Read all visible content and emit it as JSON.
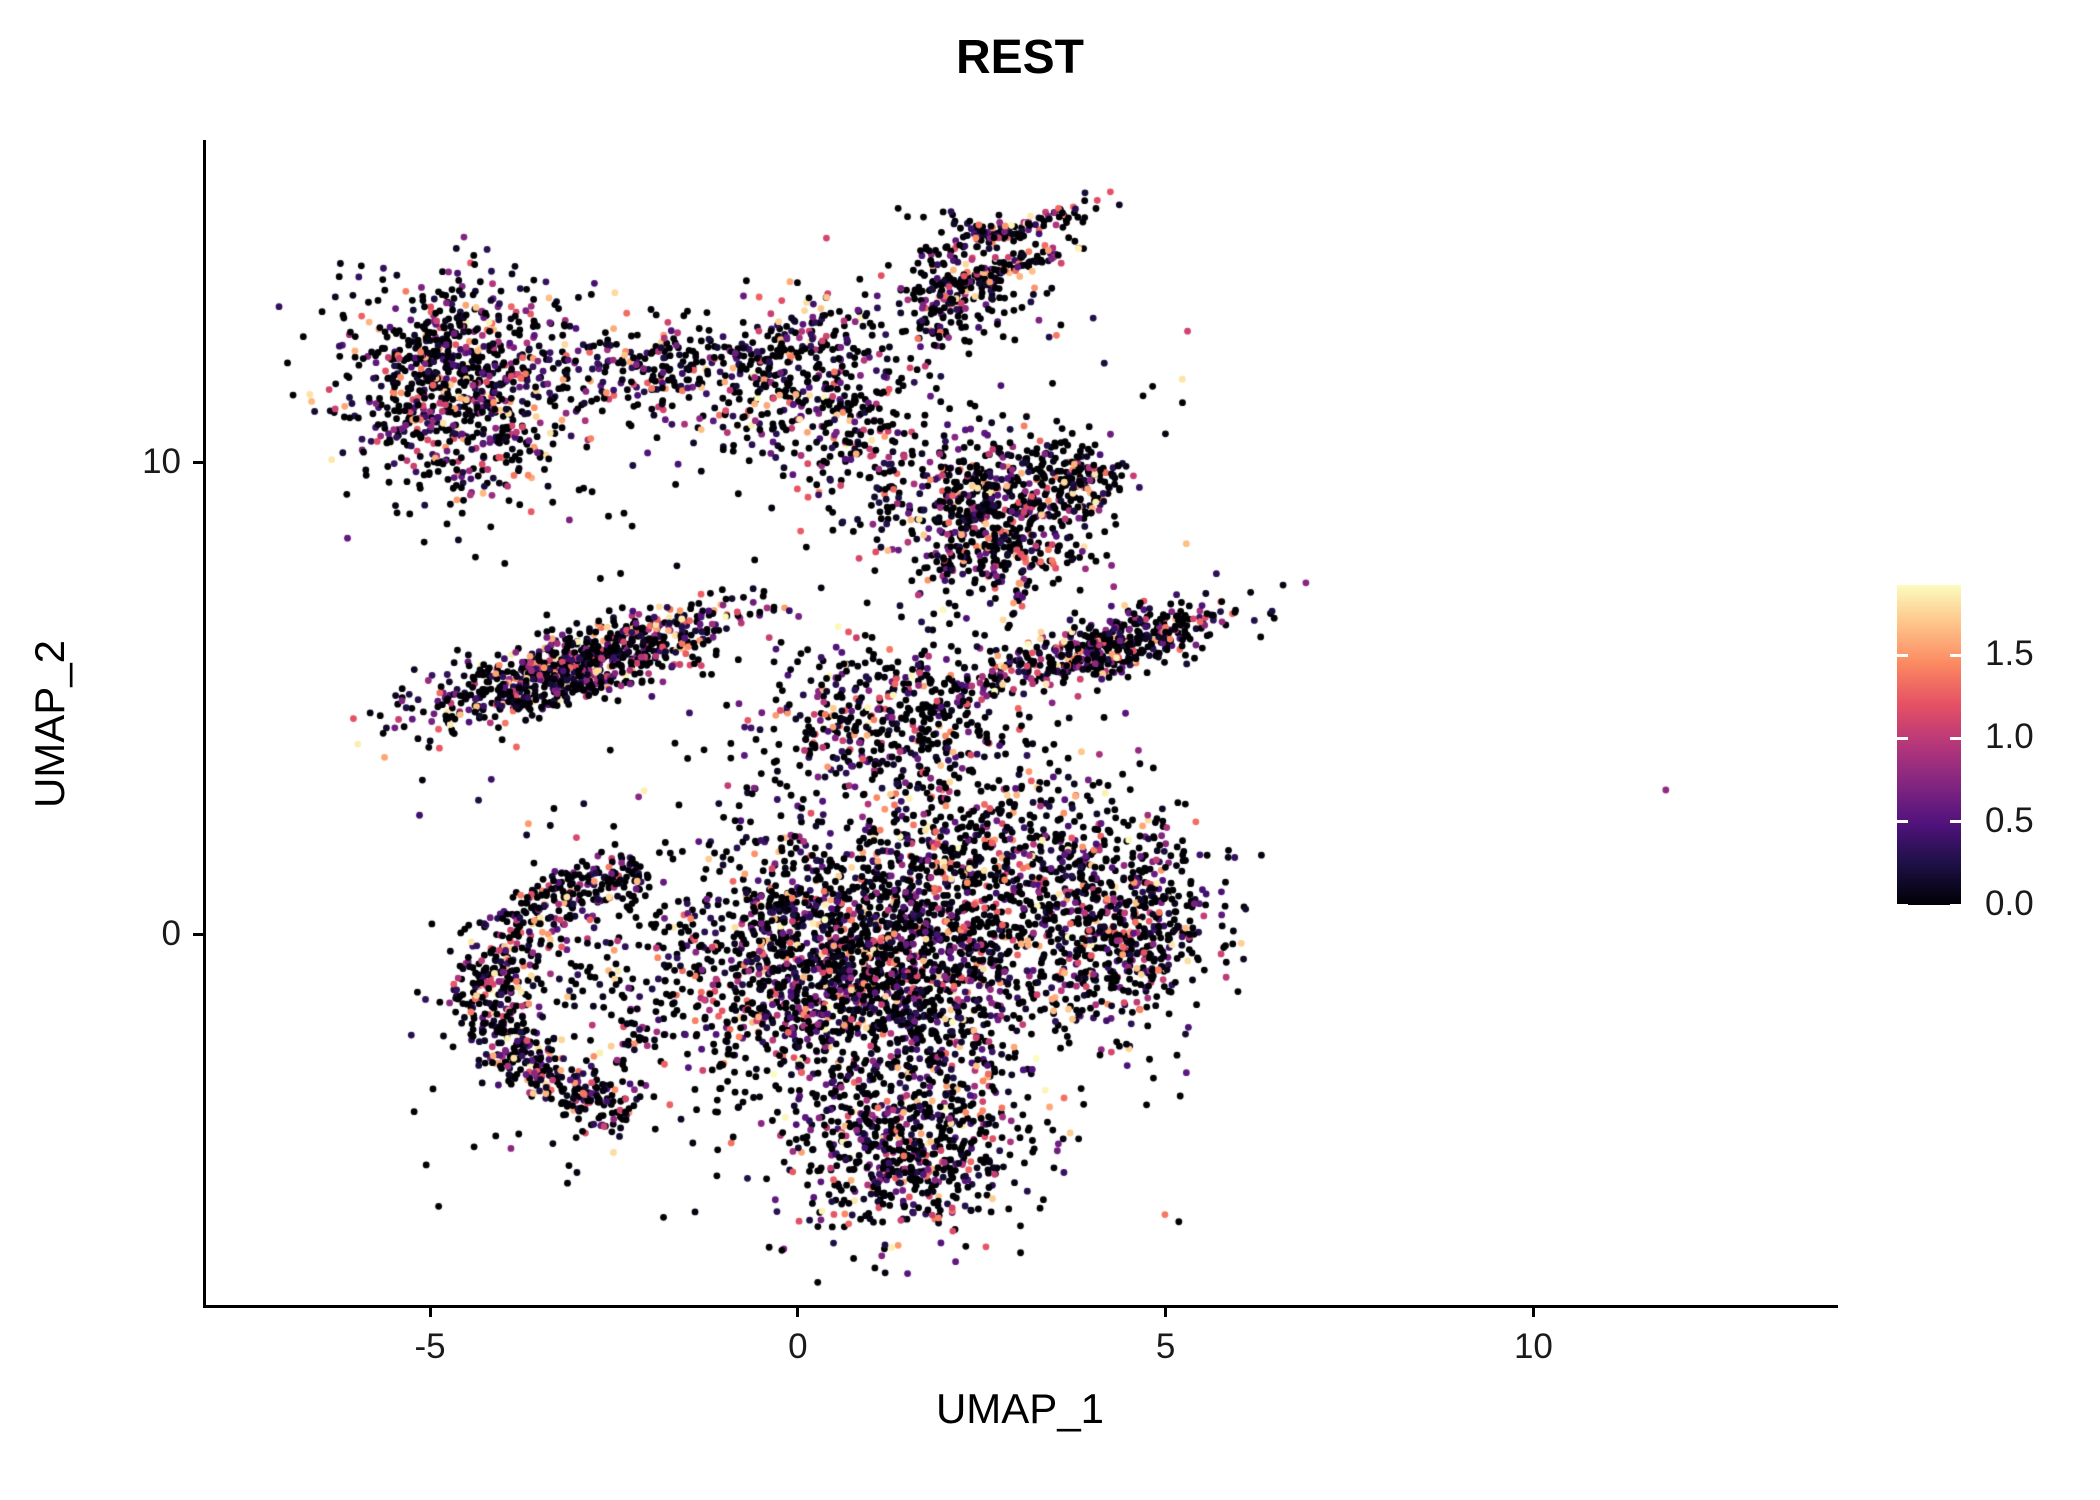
{
  "chart_data": {
    "type": "scatter",
    "title": "REST",
    "xlabel": "UMAP_1",
    "ylabel": "UMAP_2",
    "x_ticks": [
      -5,
      0,
      5,
      10
    ],
    "x_tick_labels": [
      "-5",
      "0",
      "5",
      "10"
    ],
    "y_ticks": [
      0,
      10
    ],
    "y_tick_labels": [
      "0",
      "10"
    ],
    "x_domain": [
      -8.06,
      14.1
    ],
    "y_domain": [
      -7.84,
      16.84
    ],
    "grid": false,
    "legend_position": "right",
    "point_radius": 3.4,
    "seed": 1234,
    "value_power": 2.5,
    "colorbar": {
      "domain": [
        0,
        1.92
      ],
      "ticks": [
        0.0,
        0.5,
        1.0,
        1.5
      ],
      "tick_labels": [
        "0.0",
        "0.5",
        "1.0",
        "1.5"
      ],
      "stops": [
        "#000004",
        "#1c1044",
        "#4f127b",
        "#812581",
        "#b5367a",
        "#e55064",
        "#fb8761",
        "#fec287",
        "#fbfcbf"
      ]
    },
    "clusters": [
      {
        "name": "top-left-blob",
        "kind": "gauss",
        "n": 900,
        "cx": -4.6,
        "cy": 11.7,
        "sx": 0.78,
        "sy": 1.15,
        "rot": 0,
        "p0": 0.33
      },
      {
        "name": "top-left-bridge",
        "kind": "gauss",
        "n": 170,
        "cx": -2.1,
        "cy": 12.0,
        "sx": 0.6,
        "sy": 0.55,
        "rot": 10,
        "p0": 0.4
      },
      {
        "name": "top-middle",
        "kind": "gauss",
        "n": 430,
        "cx": -0.1,
        "cy": 11.9,
        "sx": 0.7,
        "sy": 0.85,
        "rot": -20,
        "p0": 0.35
      },
      {
        "name": "top-middle-tail",
        "kind": "gauss",
        "n": 140,
        "cx": 0.9,
        "cy": 10.3,
        "sx": 0.45,
        "sy": 0.9,
        "rot": 0,
        "p0": 0.45
      },
      {
        "name": "top-right-clump",
        "kind": "gauss",
        "n": 160,
        "cx": 2.1,
        "cy": 13.5,
        "sx": 0.38,
        "sy": 0.5,
        "rot": 0,
        "p0": 0.4
      },
      {
        "name": "top-right-streak-a",
        "kind": "gauss",
        "n": 120,
        "cx": 3.0,
        "cy": 15.0,
        "sx": 0.6,
        "sy": 0.13,
        "rot": 24,
        "p0": 0.35
      },
      {
        "name": "top-right-streak-b",
        "kind": "gauss",
        "n": 90,
        "cx": 2.9,
        "cy": 14.2,
        "sx": 0.5,
        "sy": 0.12,
        "rot": 24,
        "p0": 0.35
      },
      {
        "name": "top-right-sparse",
        "kind": "uniform",
        "n": 60,
        "x0": 1.3,
        "x1": 3.6,
        "y0": 12.6,
        "y1": 15.4,
        "p0": 0.5
      },
      {
        "name": "upper-blob",
        "kind": "gauss",
        "n": 650,
        "cx": 2.6,
        "cy": 8.8,
        "sx": 0.62,
        "sy": 0.95,
        "rot": 0,
        "p0": 0.38
      },
      {
        "name": "upper-blob-knot",
        "kind": "gauss",
        "n": 140,
        "cx": 3.8,
        "cy": 9.6,
        "sx": 0.28,
        "sy": 0.45,
        "rot": 0,
        "p0": 0.45
      },
      {
        "name": "left-streak-main",
        "kind": "gauss",
        "n": 600,
        "cx": -2.9,
        "cy": 5.9,
        "sx": 1.15,
        "sy": 0.3,
        "rot": 24,
        "p0": 0.3
      },
      {
        "name": "left-streak-lower",
        "kind": "gauss",
        "n": 260,
        "cx": -3.4,
        "cy": 5.2,
        "sx": 0.95,
        "sy": 0.25,
        "rot": 24,
        "p0": 0.35
      },
      {
        "name": "right-streak",
        "kind": "gauss",
        "n": 520,
        "cx": 4.2,
        "cy": 6.1,
        "sx": 0.95,
        "sy": 0.3,
        "rot": 24,
        "p0": 0.35
      },
      {
        "name": "center-funnel",
        "kind": "gauss",
        "n": 480,
        "cx": 1.2,
        "cy": 4.6,
        "sx": 0.85,
        "sy": 0.85,
        "rot": 0,
        "p0": 0.4
      },
      {
        "name": "center-core",
        "kind": "gauss",
        "n": 2300,
        "cx": 0.9,
        "cy": -0.6,
        "sx": 1.35,
        "sy": 1.45,
        "rot": 0,
        "p0": 0.4
      },
      {
        "name": "center-right-bridge",
        "kind": "gauss",
        "n": 420,
        "cx": 2.9,
        "cy": 1.8,
        "sx": 0.9,
        "sy": 1.2,
        "rot": 0,
        "p0": 0.42
      },
      {
        "name": "right-lobe",
        "kind": "gauss",
        "n": 560,
        "cx": 4.5,
        "cy": 0.2,
        "sx": 0.6,
        "sy": 1.05,
        "rot": 0,
        "p0": 0.4
      },
      {
        "name": "bottom-tail",
        "kind": "gauss",
        "n": 620,
        "cx": 1.5,
        "cy": -4.6,
        "sx": 0.75,
        "sy": 0.95,
        "rot": -15,
        "p0": 0.4
      },
      {
        "name": "left-crescent",
        "kind": "arc",
        "n": 680,
        "cx": -1.6,
        "cy": -1.2,
        "r": 2.6,
        "a0": 100,
        "a1": 255,
        "w": 0.28,
        "p0": 0.35
      },
      {
        "name": "crescent-fill",
        "kind": "gauss",
        "n": 160,
        "cx": -2.3,
        "cy": -1.2,
        "sx": 0.8,
        "sy": 1.2,
        "rot": 0,
        "p0": 0.5
      },
      {
        "name": "background-scatter",
        "kind": "uniform",
        "n": 260,
        "x0": -5.3,
        "x1": 5.3,
        "y0": -6.3,
        "y1": 13.3,
        "p0": 0.5
      }
    ],
    "outliers": [
      {
        "x": 11.8,
        "y": 3.07,
        "value": 0.8
      }
    ]
  }
}
